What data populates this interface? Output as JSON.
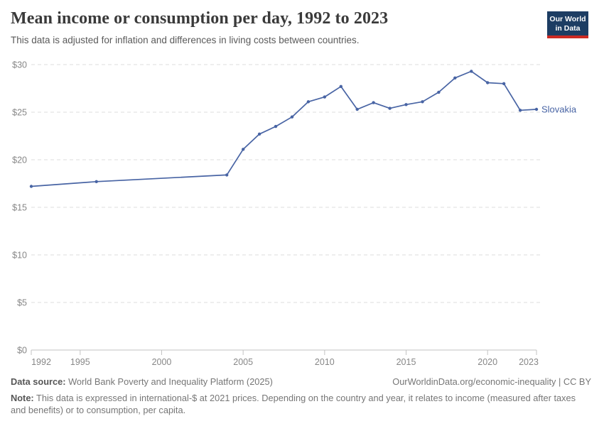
{
  "header": {
    "title": "Mean income or consumption per day, 1992 to 2023",
    "subtitle": "This data is adjusted for inflation and differences in living costs between countries."
  },
  "logo": {
    "line1": "Our World",
    "line2": "in Data"
  },
  "chart_data": {
    "type": "line",
    "title": "Mean income or consumption per day, 1992 to 2023",
    "series": [
      {
        "name": "Slovakia",
        "x": [
          1992,
          1996,
          2004,
          2005,
          2006,
          2007,
          2008,
          2009,
          2010,
          2011,
          2012,
          2013,
          2014,
          2015,
          2016,
          2017,
          2018,
          2019,
          2020,
          2021,
          2022,
          2023
        ],
        "values": [
          17.2,
          17.7,
          18.4,
          21.1,
          22.7,
          23.5,
          24.5,
          26.1,
          26.6,
          27.7,
          25.3,
          26.0,
          25.4,
          25.8,
          26.1,
          27.1,
          28.6,
          29.3,
          28.1,
          28.0,
          25.2,
          25.3
        ]
      }
    ],
    "x_ticks": [
      1992,
      1995,
      2000,
      2005,
      2010,
      2015,
      2020,
      2023
    ],
    "y_ticks": [
      0,
      5,
      10,
      15,
      20,
      25,
      30
    ],
    "y_tick_prefix": "$",
    "xlim": [
      1992,
      2023
    ],
    "ylim": [
      0,
      30
    ],
    "grid": "horizontal-dashed",
    "legend": "end-of-line-label",
    "entity_label": "Slovakia",
    "line_color": "#4864a4",
    "grid_color": "#dedede",
    "axis_color": "#c3c3c3",
    "tick_text_color": "#878787"
  },
  "footer": {
    "source_label": "Data source:",
    "source_text": " World Bank Poverty and Inequality Platform (2025)",
    "link": "OurWorldinData.org/economic-inequality | CC BY",
    "note_label": "Note:",
    "note_text": " This data is expressed in international-$ at 2021 prices. Depending on the country and year, it relates to income (measured after taxes and benefits) or to consumption, per capita."
  }
}
